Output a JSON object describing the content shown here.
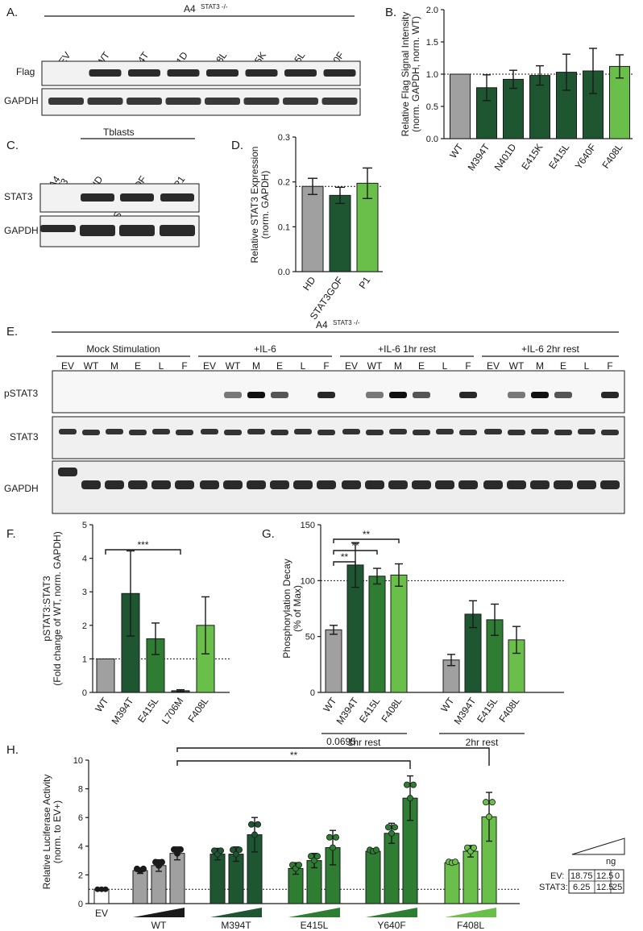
{
  "panels": {
    "A": {
      "letter": "A.",
      "header": "A4",
      "header_sup": "STAT3 -/-",
      "lanes": [
        "EV",
        "WT",
        "M394T",
        "N401D",
        "F408L",
        "E415K",
        "E415L",
        "Y640F"
      ],
      "rows": [
        "Flag",
        "GAPDH"
      ]
    },
    "B": {
      "letter": "B."
    },
    "C": {
      "letter": "C.",
      "group": "Tblasts",
      "lanes": [
        "A4 STAT3-/-",
        "HD",
        "STAT3GOF",
        "P1"
      ],
      "lane_a4_line1": "A4",
      "lane_a4_line2": "STAT3",
      "lane_a4_sup": "-/-",
      "lane_gof_base": "STAT3",
      "lane_gof_sup": "GOF",
      "rows": [
        "STAT3",
        "GAPDH"
      ]
    },
    "D": {
      "letter": "D."
    },
    "E": {
      "letter": "E.",
      "header": "A4",
      "header_sup": "STAT3 -/-",
      "groups": [
        "Mock Stimulation",
        "+IL-6",
        "+IL-6 1hr rest",
        "+IL-6 2hr rest"
      ],
      "lanes": [
        "EV",
        "WT",
        "M",
        "E",
        "L",
        "F"
      ],
      "lane_colors": [
        "#1a1a1a",
        "#1a1a1a",
        "#2e7d32",
        "#2e7d32",
        "#c62828",
        "#8bc34a"
      ],
      "rows": [
        "pSTAT3",
        "STAT3",
        "GAPDH"
      ]
    },
    "F": {
      "letter": "F."
    },
    "G": {
      "letter": "G.",
      "groups": [
        "1hr rest",
        "2hr rest"
      ]
    },
    "H": {
      "letter": "H.",
      "ev_label": "EV",
      "groups": [
        "WT",
        "M394T",
        "E415L",
        "Y640F",
        "F408L"
      ],
      "sig_top": "0.0695",
      "sig_mid": "**",
      "table": {
        "unit": "ng",
        "row1_label": "EV:",
        "row1": [
          "18.75",
          "12.5",
          "0"
        ],
        "row2_label": "STAT3:",
        "row2": [
          "6.25",
          "12.5",
          "25"
        ]
      }
    }
  },
  "colors": {
    "grey": "#a0a0a0",
    "dark_green": "#1e5631",
    "mid_green": "#2e7d32",
    "light_green": "#6abf4b",
    "lime": "#8bc34a",
    "red": "#c62828"
  },
  "chart_data": [
    {
      "panel": "B",
      "type": "bar",
      "ylabel": "Relative Flag Signal Intensity (norm. GAPDH, norm. WT)",
      "ylim": [
        0,
        2.0
      ],
      "yticks": [
        0.0,
        0.5,
        1.0,
        1.5,
        2.0
      ],
      "ref_line": 1.0,
      "categories": [
        "WT",
        "M394T",
        "N401D",
        "E415K",
        "E415L",
        "Y640F",
        "F408L"
      ],
      "values": [
        1.0,
        0.79,
        0.92,
        0.98,
        1.03,
        1.05,
        1.12
      ],
      "errors": [
        0,
        0.2,
        0.14,
        0.15,
        0.28,
        0.35,
        0.18
      ],
      "colors": [
        "#a0a0a0",
        "#1e5631",
        "#1e5631",
        "#1e5631",
        "#1e5631",
        "#1e5631",
        "#6abf4b"
      ]
    },
    {
      "panel": "D",
      "type": "bar",
      "ylabel": "Relative STAT3 Expression (norm. GAPDH)",
      "ylim": [
        0,
        0.3
      ],
      "yticks": [
        0.0,
        0.1,
        0.2,
        0.3
      ],
      "ref_line": 0.19,
      "categories": [
        "HD",
        "STAT3GOF",
        "P1"
      ],
      "values": [
        0.19,
        0.17,
        0.197
      ],
      "errors": [
        0.018,
        0.018,
        0.034
      ],
      "colors": [
        "#a0a0a0",
        "#1e5631",
        "#6abf4b"
      ]
    },
    {
      "panel": "F",
      "type": "bar",
      "ylabel": "pSTAT3:STAT3 (Fold change of WT, norm. GAPDH)",
      "ylim": [
        0,
        5
      ],
      "yticks": [
        0,
        1,
        2,
        3,
        4,
        5
      ],
      "ref_line": 1,
      "categories": [
        "WT",
        "M394T",
        "E415L",
        "L706M",
        "F408L"
      ],
      "values": [
        1.0,
        2.95,
        1.6,
        0.05,
        2.0
      ],
      "errors": [
        0,
        1.27,
        0.47,
        0.03,
        0.85
      ],
      "colors": [
        "#a0a0a0",
        "#1e5631",
        "#2e7d32",
        "#1e5631",
        "#6abf4b"
      ],
      "significance": [
        {
          "from": "WT",
          "to": "L706M",
          "label": "***"
        }
      ]
    },
    {
      "panel": "G",
      "type": "bar",
      "ylabel": "Phosphorylation Decay (% of Max)",
      "ylim": [
        0,
        150
      ],
      "yticks": [
        0,
        50,
        100,
        150
      ],
      "ref_line": 100,
      "groups": [
        {
          "name": "1hr rest",
          "categories": [
            "WT",
            "M394T",
            "E415L",
            "F408L"
          ],
          "values": [
            56,
            114,
            104,
            105
          ],
          "errors": [
            4,
            20,
            7,
            10
          ]
        },
        {
          "name": "2hr rest",
          "categories": [
            "WT",
            "M394T",
            "E415L",
            "F408L"
          ],
          "values": [
            29,
            70,
            65,
            47
          ],
          "errors": [
            5,
            12,
            14,
            12
          ]
        }
      ],
      "colors": [
        "#a0a0a0",
        "#1e5631",
        "#2e7d32",
        "#6abf4b"
      ],
      "significance": [
        {
          "from": "WT",
          "to": "M394T",
          "label": "**"
        },
        {
          "from": "WT",
          "to": "E415L",
          "label": "**"
        },
        {
          "from": "WT",
          "to": "F408L",
          "label": "**"
        }
      ]
    },
    {
      "panel": "H",
      "type": "bar",
      "ylabel": "Relative Luciferase Activity (norm. to EV+)",
      "ylim": [
        0,
        10
      ],
      "yticks": [
        0,
        2,
        4,
        6,
        8,
        10
      ],
      "ref_line": 1,
      "ev_value": 1.0,
      "groups": [
        {
          "name": "WT",
          "values": [
            2.3,
            2.65,
            3.5
          ],
          "errors": [
            0.2,
            0.4,
            0.45
          ]
        },
        {
          "name": "M394T",
          "values": [
            3.45,
            3.45,
            4.8
          ],
          "errors": [
            0.4,
            0.5,
            1.2
          ]
        },
        {
          "name": "E415L",
          "values": [
            2.45,
            3.0,
            3.9
          ],
          "errors": [
            0.4,
            0.5,
            1.2
          ]
        },
        {
          "name": "Y640F",
          "values": [
            3.65,
            4.9,
            7.35
          ],
          "errors": [
            0.15,
            0.7,
            1.55
          ]
        },
        {
          "name": "F408L",
          "values": [
            2.85,
            3.65,
            6.05
          ],
          "errors": [
            0.1,
            0.4,
            1.7
          ]
        }
      ],
      "colors": [
        "#a0a0a0",
        "#1e5631",
        "#2e7d32",
        "#2e7d32",
        "#6abf4b"
      ],
      "significance": [
        {
          "from": "WT",
          "to": "Y640F",
          "label": "**"
        },
        {
          "from": "WT",
          "to": "F408L",
          "label": "0.0695"
        }
      ]
    }
  ]
}
